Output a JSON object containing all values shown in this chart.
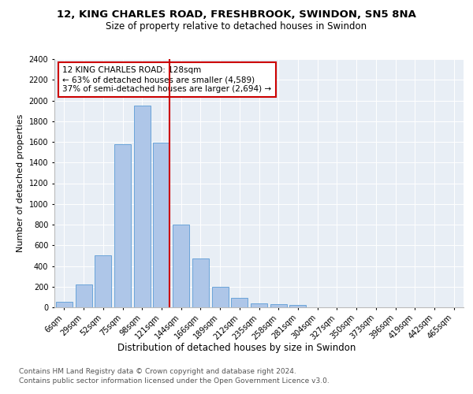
{
  "title1": "12, KING CHARLES ROAD, FRESHBROOK, SWINDON, SN5 8NA",
  "title2": "Size of property relative to detached houses in Swindon",
  "xlabel": "Distribution of detached houses by size in Swindon",
  "ylabel": "Number of detached properties",
  "categories": [
    "6sqm",
    "29sqm",
    "52sqm",
    "75sqm",
    "98sqm",
    "121sqm",
    "144sqm",
    "166sqm",
    "189sqm",
    "212sqm",
    "235sqm",
    "258sqm",
    "281sqm",
    "304sqm",
    "327sqm",
    "350sqm",
    "373sqm",
    "396sqm",
    "419sqm",
    "442sqm",
    "465sqm"
  ],
  "values": [
    55,
    220,
    500,
    1580,
    1950,
    1590,
    800,
    475,
    195,
    90,
    40,
    30,
    20,
    0,
    0,
    0,
    0,
    0,
    0,
    0,
    0
  ],
  "bar_color": "#aec6e8",
  "bar_edge_color": "#5b9bd5",
  "vline_color": "#cc0000",
  "vline_pos": 5.42,
  "annotation_text": "12 KING CHARLES ROAD: 128sqm\n← 63% of detached houses are smaller (4,589)\n37% of semi-detached houses are larger (2,694) →",
  "annotation_box_color": "#ffffff",
  "annotation_box_edge_color": "#cc0000",
  "ylim": [
    0,
    2400
  ],
  "yticks": [
    0,
    200,
    400,
    600,
    800,
    1000,
    1200,
    1400,
    1600,
    1800,
    2000,
    2200,
    2400
  ],
  "footnote1": "Contains HM Land Registry data © Crown copyright and database right 2024.",
  "footnote2": "Contains public sector information licensed under the Open Government Licence v3.0.",
  "bg_color": "#e8eef5",
  "fig_bg_color": "#ffffff",
  "title1_fontsize": 9.5,
  "title2_fontsize": 8.5,
  "xlabel_fontsize": 8.5,
  "ylabel_fontsize": 8,
  "tick_fontsize": 7,
  "annotation_fontsize": 7.5,
  "footnote_fontsize": 6.5
}
